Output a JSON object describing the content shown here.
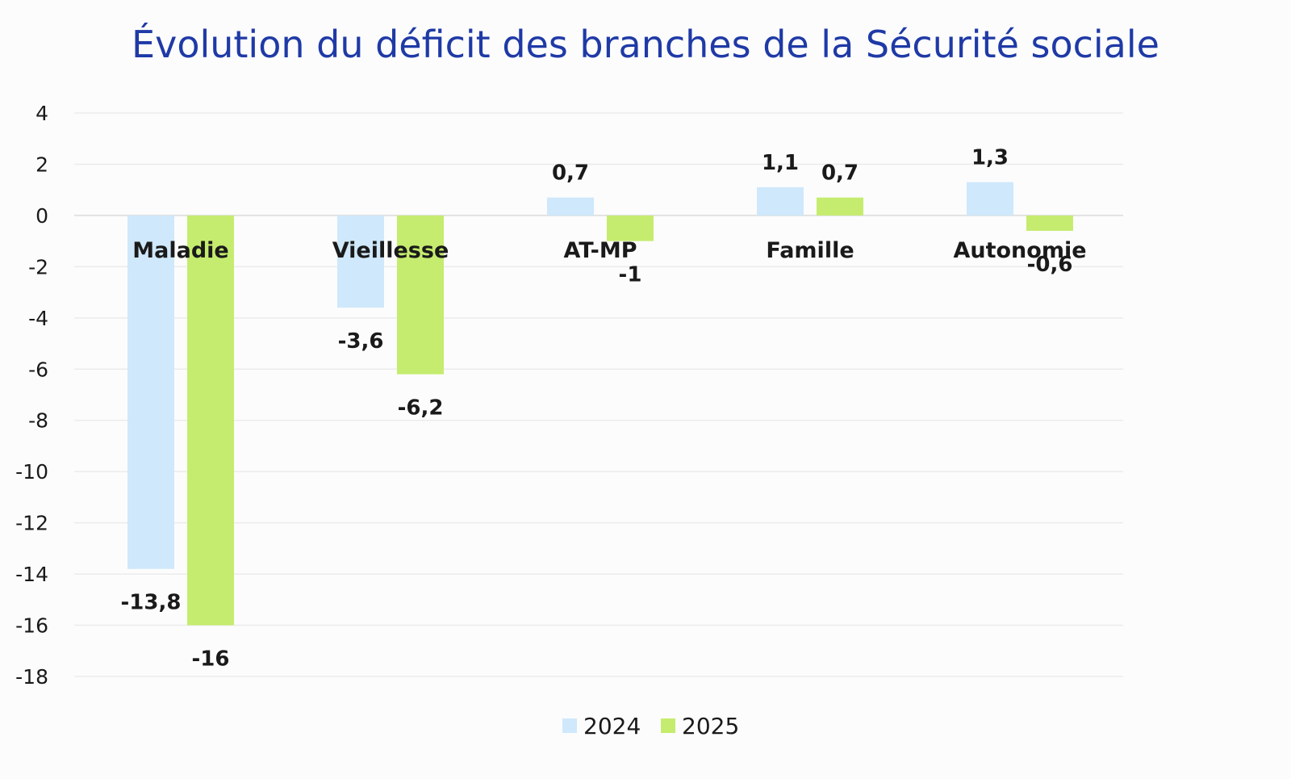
{
  "chart_data": {
    "type": "bar",
    "title": "Évolution du déficit des branches de la Sécurité sociale",
    "xlabel": "",
    "ylabel": "",
    "categories": [
      "Maladie",
      "Vieillesse",
      "AT-MP",
      "Famille",
      "Autonomie"
    ],
    "series": [
      {
        "name": "2024",
        "values": [
          -13.8,
          -3.6,
          0.7,
          1.1,
          1.3
        ],
        "labels": [
          "-13,8",
          "-3,6",
          "0,7",
          "1,1",
          "1,3"
        ],
        "color": "#cfe8fb"
      },
      {
        "name": "2025",
        "values": [
          -16,
          -6.2,
          -1,
          0.7,
          -0.6
        ],
        "labels": [
          "-16",
          "-6,2",
          "-1",
          "0,7",
          "-0,6"
        ],
        "color": "#c5ec6e"
      }
    ],
    "ylim": [
      -18,
      4
    ],
    "yticks": [
      4,
      2,
      0,
      -2,
      -4,
      -6,
      -8,
      -10,
      -12,
      -14,
      -16,
      -18
    ],
    "grid": true,
    "legend_position": "bottom",
    "title_color": "#1f3aa6"
  }
}
